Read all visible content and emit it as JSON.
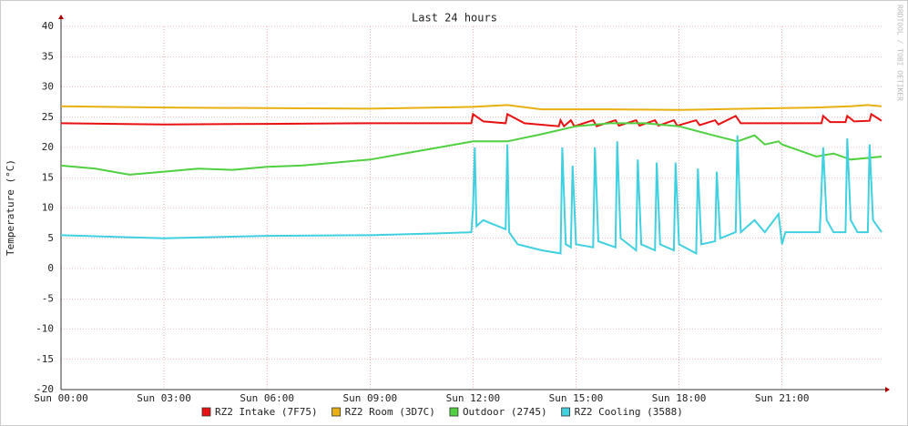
{
  "chart_data": {
    "type": "line",
    "title": "Last 24 hours",
    "y_label": "Temperature (°C)",
    "watermark": "RRDTOOL / TOBI OETIKER",
    "xlim": [
      0,
      23.9
    ],
    "ylim": [
      -20,
      40
    ],
    "xticks": [
      {
        "value": 0,
        "label": "Sun 00:00"
      },
      {
        "value": 3,
        "label": "Sun 03:00"
      },
      {
        "value": 6,
        "label": "Sun 06:00"
      },
      {
        "value": 9,
        "label": "Sun 09:00"
      },
      {
        "value": 12,
        "label": "Sun 12:00"
      },
      {
        "value": 15,
        "label": "Sun 15:00"
      },
      {
        "value": 18,
        "label": "Sun 18:00"
      },
      {
        "value": 21,
        "label": "Sun 21:00"
      }
    ],
    "yticks": [
      -20,
      -15,
      -10,
      -5,
      0,
      5,
      10,
      15,
      20,
      25,
      30,
      35,
      40
    ],
    "grid": true,
    "series": [
      {
        "name": "RZ2 Intake (7F75)",
        "color": "#e81010",
        "x": [
          0,
          3,
          6,
          9,
          11.95,
          12.0,
          12.3,
          12.95,
          13.0,
          13.5,
          14.5,
          14.55,
          14.65,
          14.85,
          14.95,
          15.5,
          15.6,
          16.15,
          16.25,
          16.75,
          16.85,
          17.3,
          17.4,
          17.85,
          17.95,
          18.5,
          18.6,
          19.05,
          19.15,
          19.65,
          19.8,
          22.15,
          22.2,
          22.4,
          22.85,
          22.9,
          23.1,
          23.55,
          23.6,
          23.9
        ],
        "values": [
          24,
          23.8,
          23.9,
          24,
          24,
          25.5,
          24.3,
          24,
          25.5,
          24,
          23.5,
          24.5,
          23.5,
          24.5,
          23.5,
          24.5,
          23.5,
          24.5,
          23.6,
          24.5,
          23.6,
          24.5,
          23.6,
          24.5,
          23.6,
          24.5,
          23.7,
          24.5,
          23.8,
          25.2,
          24,
          24,
          25.2,
          24.2,
          24.2,
          25.2,
          24.3,
          24.4,
          25.5,
          24.4
        ]
      },
      {
        "name": "RZ2 Room (3D7C)",
        "color": "#e8b010",
        "x": [
          0,
          3,
          6,
          9,
          12,
          13,
          14,
          16,
          18,
          20,
          21,
          22,
          23,
          23.5,
          23.9
        ],
        "values": [
          26.8,
          26.6,
          26.5,
          26.4,
          26.7,
          27,
          26.3,
          26.3,
          26.2,
          26.4,
          26.5,
          26.6,
          26.8,
          27,
          26.8
        ]
      },
      {
        "name": "Outdoor (2745)",
        "color": "#50d040",
        "x": [
          0,
          1,
          2,
          3,
          4,
          5,
          6,
          7,
          8,
          9,
          10,
          11,
          12,
          13,
          14,
          15,
          16,
          17,
          18,
          19,
          19.7,
          20.2,
          20.5,
          20.9,
          21,
          21.5,
          22,
          22.5,
          23,
          23.9
        ],
        "values": [
          17,
          16.5,
          15.5,
          16,
          16.5,
          16.3,
          16.8,
          17,
          17.5,
          18,
          19,
          20,
          21,
          21,
          22.2,
          23.5,
          24,
          24,
          23.5,
          22,
          21,
          22,
          20.5,
          21,
          20.5,
          19.5,
          18.5,
          19,
          18,
          18.5
        ]
      },
      {
        "name": "RZ2 Cooling (3588)",
        "color": "#40d0e0",
        "x": [
          0,
          3,
          6,
          9,
          11,
          11.95,
          12.0,
          12.05,
          12.1,
          12.3,
          12.5,
          12.95,
          13.0,
          13.05,
          13.3,
          14,
          14.55,
          14.6,
          14.7,
          14.85,
          14.9,
          15.0,
          15.5,
          15.55,
          15.65,
          16.15,
          16.2,
          16.3,
          16.75,
          16.8,
          16.9,
          17.3,
          17.35,
          17.45,
          17.85,
          17.9,
          18.0,
          18.5,
          18.55,
          18.65,
          19.05,
          19.1,
          19.2,
          19.65,
          19.7,
          19.8,
          20.2,
          20.5,
          20.9,
          21.0,
          21.1,
          22.1,
          22.2,
          22.3,
          22.5,
          22.85,
          22.9,
          23.0,
          23.2,
          23.5,
          23.55,
          23.65,
          23.9
        ],
        "values": [
          5.5,
          5,
          5.4,
          5.5,
          5.8,
          6,
          10,
          20,
          7,
          8,
          7.5,
          6.5,
          20.5,
          6,
          4,
          3,
          2.5,
          20,
          4,
          3.5,
          17,
          4,
          3.5,
          20,
          4.5,
          3.5,
          21,
          5,
          3,
          18,
          4,
          3,
          17.5,
          4,
          3,
          17.5,
          4,
          2.5,
          16.5,
          4,
          4.5,
          16,
          5,
          6,
          22,
          6,
          8,
          6,
          9,
          4,
          6,
          6,
          20,
          8,
          6,
          6,
          21.5,
          8,
          6,
          6,
          20.5,
          8,
          6
        ]
      }
    ]
  }
}
